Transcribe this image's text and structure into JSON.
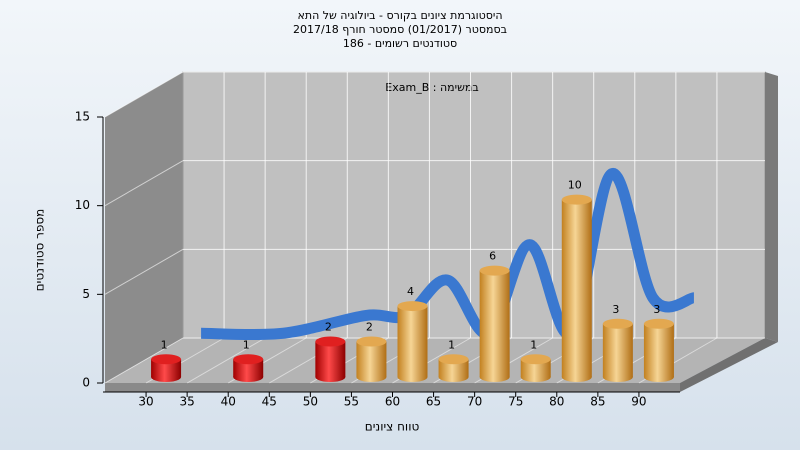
{
  "chart_data": {
    "type": "bar3d",
    "title": [
      "היסטוגרמת ציונים בקורס - ביולוגיה של התא",
      "בסמסטר  (01/2017)  סמסטר חורף 2017/18",
      "186 - סטודנטים רשומים"
    ],
    "annotation": "Exam_B : במשימה",
    "x_label": "טווח ציונים",
    "y_label": "מספר סטודנטים",
    "x": [
      30,
      40,
      50,
      55,
      60,
      65,
      70,
      75,
      80,
      85,
      90
    ],
    "values": [
      1,
      1,
      2,
      2,
      4,
      1,
      6,
      1,
      10,
      3,
      3
    ],
    "colors": [
      "red",
      "red",
      "red",
      "orange",
      "orange",
      "orange",
      "orange",
      "orange",
      "orange",
      "orange",
      "orange"
    ],
    "line_color": "#3a78d0",
    "xlim": [
      25,
      95
    ],
    "xticks": [
      30,
      35,
      40,
      45,
      50,
      55,
      60,
      65,
      70,
      75,
      80,
      85,
      90
    ],
    "ylim": [
      0,
      15
    ],
    "yticks": [
      0,
      5,
      10,
      15
    ],
    "grid": true
  }
}
